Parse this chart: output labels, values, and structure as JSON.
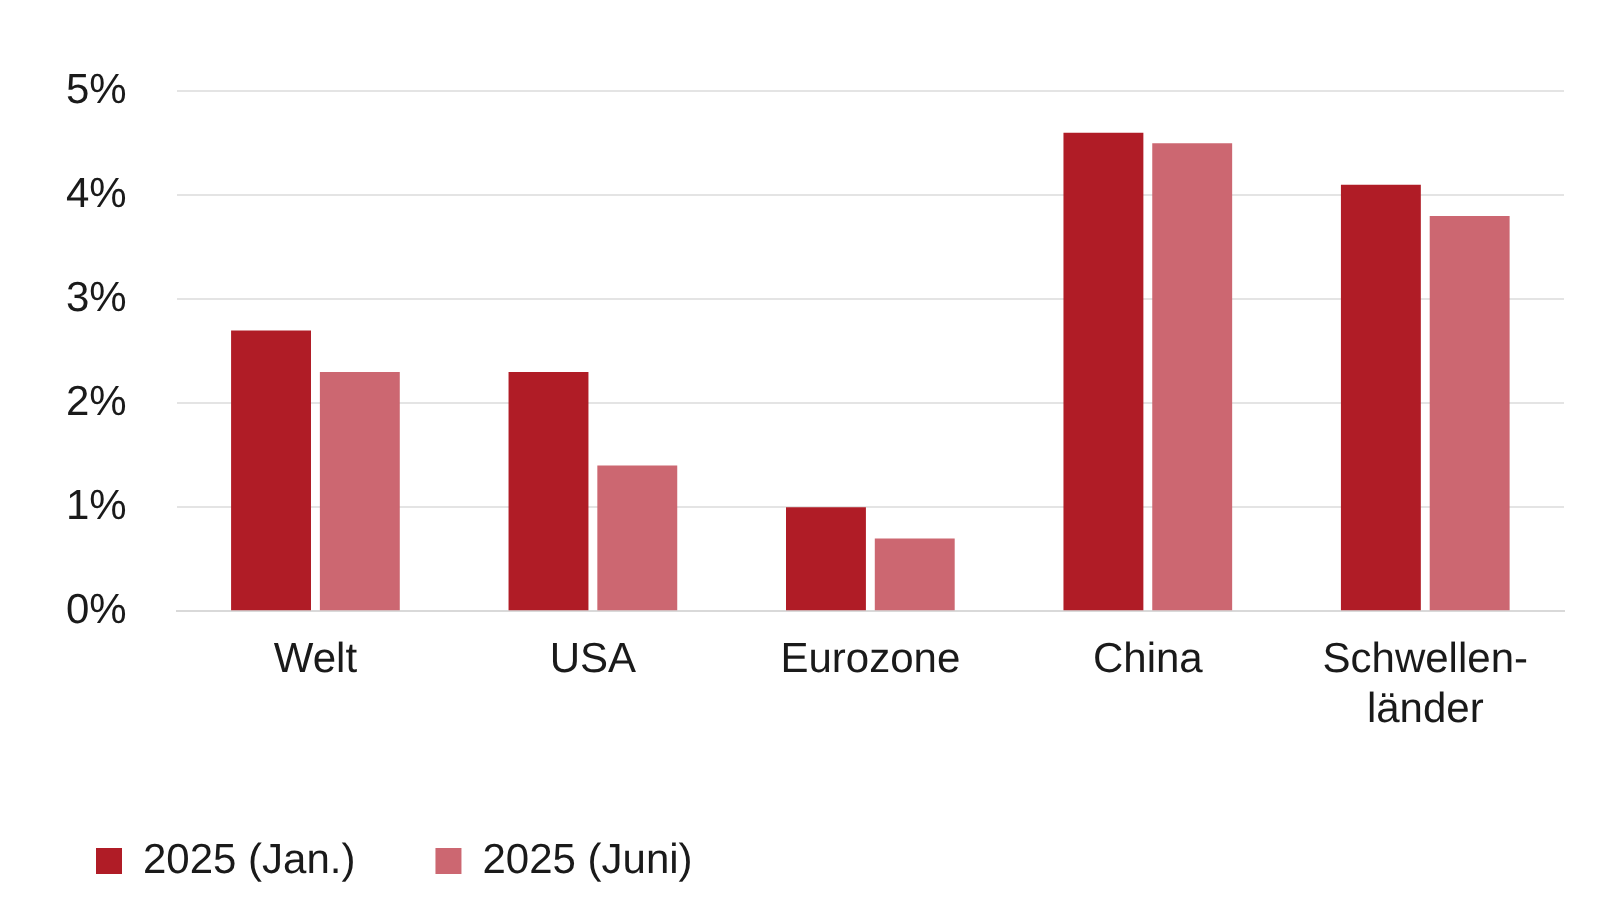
{
  "chart_data": {
    "type": "bar",
    "categories": [
      "Welt",
      "USA",
      "Eurozone",
      "China",
      "Schwellen-\nländer"
    ],
    "series": [
      {
        "name": "2025 (Jan.)",
        "color": "#b01c26",
        "values": [
          2.7,
          2.3,
          1.0,
          4.6,
          4.1
        ]
      },
      {
        "name": "2025 (Juni)",
        "color": "#cc6771",
        "values": [
          2.3,
          1.4,
          0.7,
          4.5,
          3.8
        ]
      }
    ],
    "ylim": [
      0,
      5
    ],
    "yticks": [
      {
        "value": 0,
        "label": "0%"
      },
      {
        "value": 1,
        "label": "1%"
      },
      {
        "value": 2,
        "label": "2%"
      },
      {
        "value": 3,
        "label": "3%"
      },
      {
        "value": 4,
        "label": "4%"
      },
      {
        "value": 5,
        "label": "5%"
      }
    ],
    "grid": "y",
    "legend": "bottom left"
  }
}
